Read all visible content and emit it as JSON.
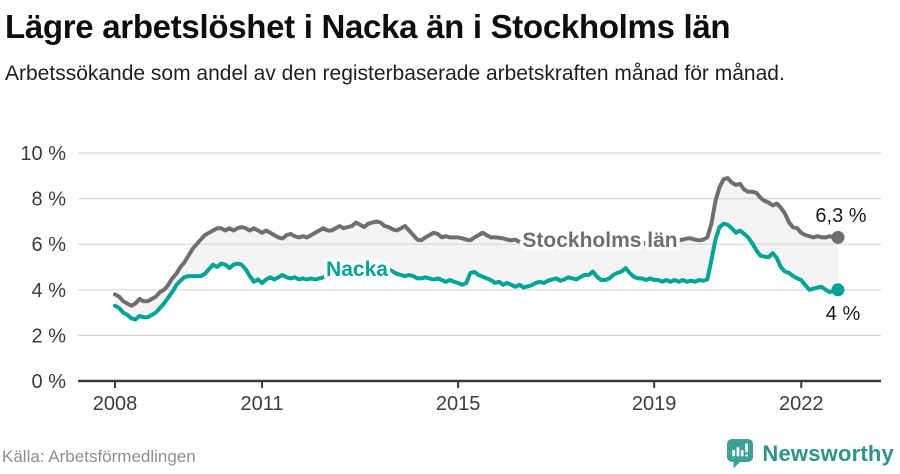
{
  "header": {
    "title": "Lägre arbetslöshet i Nacka än i Stockholms län",
    "subtitle": "Arbetssökande som andel av den registerbaserade arbetskraften månad för månad."
  },
  "chart_data": {
    "type": "line",
    "title": "Lägre arbetslöshet i Nacka än i Stockholms län",
    "subtitle": "Arbetssökande som andel av den registerbaserade arbetskraften månad för månad.",
    "unit": "%",
    "frequency": "monthly",
    "x_start": "2008-01",
    "x_end": "2022-10",
    "x_tick_years": [
      2008,
      2011,
      2015,
      2019,
      2022
    ],
    "y_ticks": [
      0,
      2,
      4,
      6,
      8,
      10
    ],
    "y_tick_labels": [
      "0 %",
      "2 %",
      "4 %",
      "6 %",
      "8 %",
      "10 %"
    ],
    "ylim": [
      0,
      10
    ],
    "grid": "horizontal",
    "band_fill_between_series": true,
    "legend_position": "inline-labels-on-lines",
    "series": [
      {
        "name": "Stockholms län",
        "color": "#6f6f6f",
        "end_label": "6,3 %",
        "end_value": 6.3,
        "values": [
          3.8,
          3.7,
          3.5,
          3.4,
          3.3,
          3.4,
          3.6,
          3.5,
          3.5,
          3.6,
          3.7,
          3.9,
          4.0,
          4.2,
          4.5,
          4.7,
          5.0,
          5.2,
          5.5,
          5.8,
          6.0,
          6.2,
          6.4,
          6.5,
          6.6,
          6.7,
          6.7,
          6.6,
          6.7,
          6.6,
          6.7,
          6.75,
          6.7,
          6.6,
          6.7,
          6.6,
          6.5,
          6.6,
          6.5,
          6.4,
          6.3,
          6.25,
          6.4,
          6.45,
          6.35,
          6.3,
          6.35,
          6.3,
          6.4,
          6.5,
          6.6,
          6.7,
          6.6,
          6.6,
          6.7,
          6.8,
          6.7,
          6.75,
          6.8,
          6.95,
          6.85,
          6.75,
          6.9,
          6.95,
          7.0,
          6.95,
          6.8,
          6.75,
          6.65,
          6.6,
          6.7,
          6.8,
          6.6,
          6.4,
          6.2,
          6.17,
          6.3,
          6.4,
          6.5,
          6.45,
          6.3,
          6.35,
          6.3,
          6.3,
          6.3,
          6.26,
          6.2,
          6.17,
          6.3,
          6.4,
          6.5,
          6.4,
          6.3,
          6.3,
          6.28,
          6.26,
          6.2,
          6.17,
          6.2,
          6.1,
          6.1,
          6.0,
          6.2,
          6.3,
          6.2,
          6.1,
          6.1,
          6.2,
          6.2,
          6.1,
          6.0,
          6.0,
          5.9,
          6.0,
          6.2,
          6.2,
          6.1,
          6.0,
          6.0,
          6.1,
          6.1,
          6.0,
          6.0,
          5.9,
          6.0,
          6.0,
          6.1,
          6.2,
          6.1,
          6.1,
          6.0,
          6.1,
          6.1,
          6.1,
          6.0,
          6.1,
          6.1,
          6.2,
          6.17,
          6.2,
          6.25,
          6.26,
          6.2,
          6.17,
          6.2,
          6.3,
          6.9,
          7.9,
          8.5,
          8.85,
          8.9,
          8.7,
          8.6,
          8.65,
          8.4,
          8.3,
          8.3,
          8.26,
          8.04,
          7.9,
          7.83,
          7.7,
          7.78,
          7.6,
          7.35,
          6.96,
          6.74,
          6.7,
          6.5,
          6.4,
          6.35,
          6.3,
          6.35,
          6.3,
          6.3,
          6.35,
          6.3,
          6.3
        ]
      },
      {
        "name": "Nacka",
        "color": "#00a496",
        "end_label": "4 %",
        "end_value": 4.0,
        "values": [
          3.3,
          3.2,
          3.0,
          2.9,
          2.75,
          2.7,
          2.85,
          2.8,
          2.8,
          2.9,
          3.0,
          3.2,
          3.4,
          3.65,
          3.9,
          4.2,
          4.4,
          4.55,
          4.6,
          4.6,
          4.6,
          4.6,
          4.7,
          4.9,
          5.1,
          5.0,
          5.15,
          5.1,
          4.95,
          5.1,
          5.15,
          5.1,
          4.9,
          4.6,
          4.35,
          4.45,
          4.3,
          4.45,
          4.55,
          4.45,
          4.55,
          4.65,
          4.55,
          4.5,
          4.55,
          4.45,
          4.5,
          4.45,
          4.5,
          4.45,
          4.5,
          4.55,
          4.6,
          4.65,
          4.7,
          4.8,
          4.85,
          4.9,
          4.95,
          5.0,
          5.0,
          5.05,
          5.1,
          5.05,
          5.0,
          4.95,
          5.0,
          4.9,
          4.8,
          4.7,
          4.65,
          4.6,
          4.65,
          4.6,
          4.5,
          4.5,
          4.55,
          4.5,
          4.45,
          4.5,
          4.43,
          4.35,
          4.43,
          4.35,
          4.3,
          4.22,
          4.3,
          4.74,
          4.78,
          4.65,
          4.57,
          4.5,
          4.43,
          4.3,
          4.35,
          4.22,
          4.3,
          4.22,
          4.13,
          4.22,
          4.1,
          4.15,
          4.2,
          4.3,
          4.35,
          4.3,
          4.4,
          4.45,
          4.5,
          4.4,
          4.45,
          4.55,
          4.5,
          4.45,
          4.57,
          4.65,
          4.65,
          4.8,
          4.57,
          4.43,
          4.43,
          4.5,
          4.65,
          4.74,
          4.8,
          4.95,
          4.74,
          4.57,
          4.5,
          4.5,
          4.43,
          4.5,
          4.43,
          4.43,
          4.35,
          4.43,
          4.35,
          4.43,
          4.35,
          4.43,
          4.35,
          4.4,
          4.35,
          4.43,
          4.4,
          4.45,
          5.3,
          6.2,
          6.75,
          6.9,
          6.85,
          6.7,
          6.5,
          6.6,
          6.45,
          6.3,
          6.04,
          5.74,
          5.5,
          5.45,
          5.43,
          5.6,
          5.4,
          5.0,
          4.8,
          4.74,
          4.6,
          4.5,
          4.43,
          4.2,
          4.0,
          4.05,
          4.1,
          4.13,
          4.0,
          3.9,
          3.95,
          4.0
        ]
      }
    ]
  },
  "footer": {
    "source": "Källa: Arbetsförmedlingen",
    "logo_text": "Newsworthy"
  },
  "colors": {
    "band": "#f4f4f4",
    "grid": "#d8d8d8",
    "axis": "#3c3c3c",
    "tick_text": "#3c3c3c",
    "end_label_text": "#1a1a1a",
    "title_text": "#0e0e0e",
    "muted_text": "#8f8f8f",
    "nacka_teal": "#00a496",
    "stockholm_gray": "#6f6f6f",
    "logo_icon": "#3fa094",
    "logo_text": "#2f9389"
  }
}
